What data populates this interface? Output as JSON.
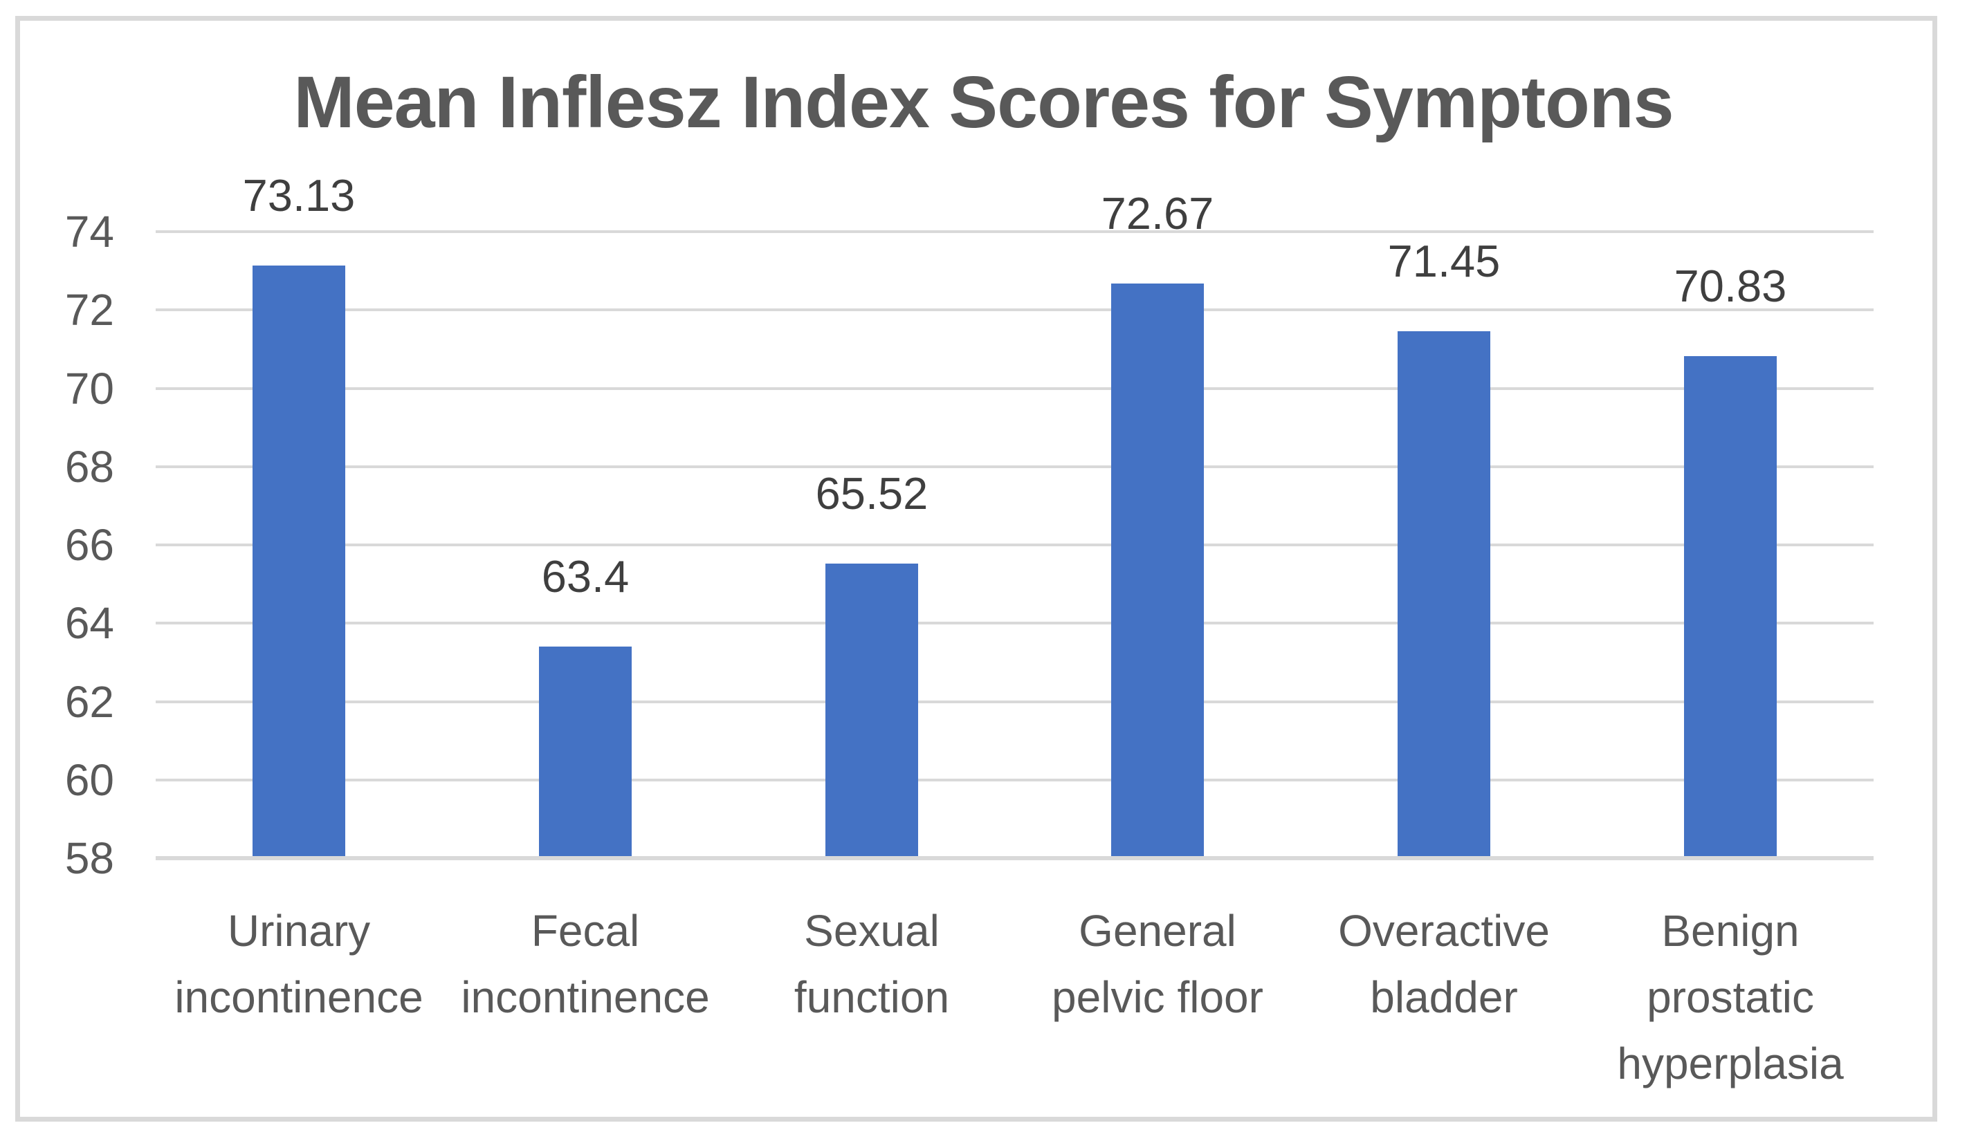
{
  "chart_data": {
    "type": "bar",
    "title": "Mean Inflesz Index Scores for Symptons",
    "categories": [
      "Urinary incontinence",
      "Fecal incontinence",
      "Sexual function",
      "General pelvic floor",
      "Overactive bladder",
      "Benign prostatic hyperplasia"
    ],
    "category_tick_lines": [
      [
        "Urinary",
        "incontinence"
      ],
      [
        "Fecal",
        "incontinence"
      ],
      [
        "Sexual",
        "function"
      ],
      [
        "General",
        "pelvic floor"
      ],
      [
        "Overactive",
        "bladder"
      ],
      [
        "Benign",
        "prostatic",
        "hyperplasia"
      ]
    ],
    "values": [
      73.13,
      63.4,
      65.52,
      72.67,
      71.45,
      70.83
    ],
    "data_labels": [
      "73.13",
      "63.4",
      "65.52",
      "72.67",
      "71.45",
      "70.83"
    ],
    "y_ticks": [
      58,
      60,
      62,
      64,
      66,
      68,
      70,
      72,
      74
    ],
    "ylim": [
      58,
      74
    ],
    "xlabel": "",
    "ylabel": "",
    "grid": true,
    "legend": false,
    "colors": {
      "bar": "#4472C4",
      "gridline": "#D9D9D9",
      "axis_line": "#D9D9D9",
      "title_text": "#595959",
      "tick_label_text": "#595959",
      "data_label_text": "#3F3F3F",
      "outer_border": "#D9D9D9",
      "background": "#FFFFFF"
    }
  }
}
